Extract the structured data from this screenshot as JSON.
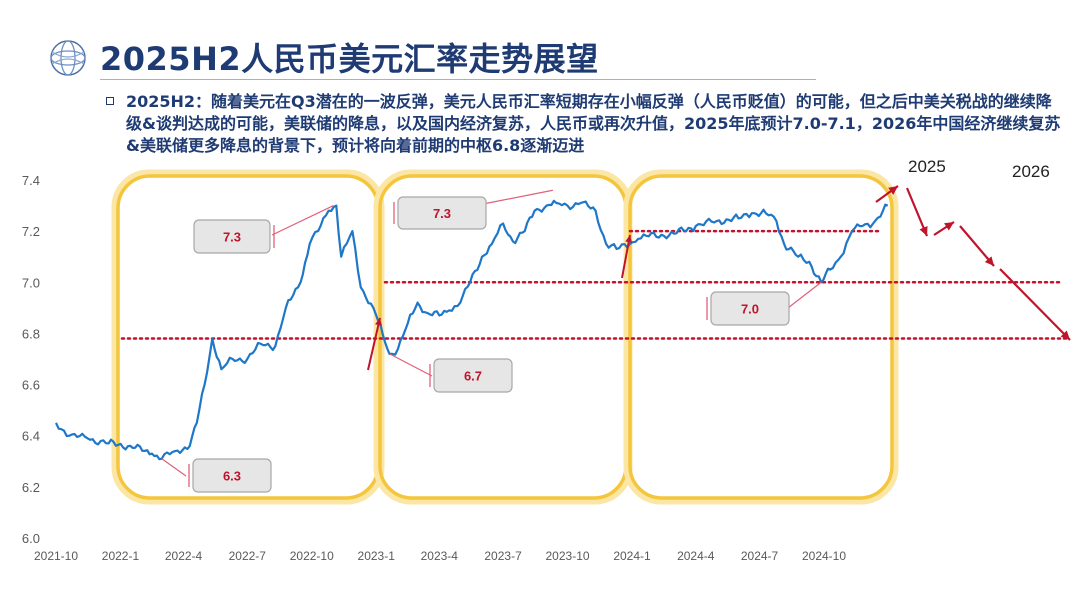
{
  "header": {
    "title": "2025H2人民币美元汇率走势展望",
    "summary": "2025H2：随着美元在Q3潜在的一波反弹，美元人民币汇率短期存在小幅反弹（人民币贬值）的可能，但之后中美关税战的继续降级&谈判达成的可能，美联储的降息，以及国内经济复苏，人民币或再次升值，2025年底预计7.0-7.1，2026年中国经济继续复苏&美联储更多降息的背景下，预计将向着前期的中枢6.8逐渐迈进"
  },
  "colors": {
    "title": "#1f3b73",
    "series": "#1f77c8",
    "highlight_box": "#f4c63d",
    "reference_line": "#c0142c",
    "callout_text": "#c0142c"
  },
  "chart_data": {
    "type": "line",
    "title": "",
    "xlabel": "",
    "ylabel": "",
    "ylim": [
      6.0,
      7.4
    ],
    "yticks": [
      "6.0",
      "6.2",
      "6.4",
      "6.6",
      "6.8",
      "7.0",
      "7.2",
      "7.4"
    ],
    "xticks": [
      "2021-10",
      "2022-1",
      "2022-4",
      "2022-7",
      "2022-10",
      "2023-1",
      "2023-4",
      "2023-7",
      "2023-10",
      "2024-1",
      "2024-4",
      "2024-7",
      "2024-10"
    ],
    "grid": false,
    "series": [
      {
        "name": "",
        "points": [
          [
            "2021-10-01",
            6.45
          ],
          [
            "2021-10-20",
            6.4
          ],
          [
            "2021-11-15",
            6.39
          ],
          [
            "2021-12-15",
            6.37
          ],
          [
            "2022-01-15",
            6.36
          ],
          [
            "2022-02-15",
            6.33
          ],
          [
            "2022-03-01",
            6.31
          ],
          [
            "2022-03-20",
            6.34
          ],
          [
            "2022-04-10",
            6.36
          ],
          [
            "2022-04-20",
            6.45
          ],
          [
            "2022-05-01",
            6.6
          ],
          [
            "2022-05-12",
            6.78
          ],
          [
            "2022-05-25",
            6.66
          ],
          [
            "2022-06-10",
            6.7
          ],
          [
            "2022-07-01",
            6.7
          ],
          [
            "2022-07-20",
            6.76
          ],
          [
            "2022-08-10",
            6.75
          ],
          [
            "2022-08-25",
            6.9
          ],
          [
            "2022-09-15",
            7.0
          ],
          [
            "2022-09-28",
            7.15
          ],
          [
            "2022-10-10",
            7.2
          ],
          [
            "2022-10-25",
            7.28
          ],
          [
            "2022-11-05",
            7.3
          ],
          [
            "2022-11-12",
            7.1
          ],
          [
            "2022-11-28",
            7.2
          ],
          [
            "2022-12-10",
            6.98
          ],
          [
            "2022-12-28",
            6.9
          ],
          [
            "2023-01-10",
            6.8
          ],
          [
            "2023-01-20",
            6.72
          ],
          [
            "2023-02-01",
            6.74
          ],
          [
            "2023-02-15",
            6.84
          ],
          [
            "2023-03-01",
            6.92
          ],
          [
            "2023-03-15",
            6.88
          ],
          [
            "2023-04-01",
            6.87
          ],
          [
            "2023-04-15",
            6.89
          ],
          [
            "2023-05-01",
            6.92
          ],
          [
            "2023-05-15",
            7.0
          ],
          [
            "2023-06-01",
            7.1
          ],
          [
            "2023-06-15",
            7.15
          ],
          [
            "2023-07-01",
            7.23
          ],
          [
            "2023-07-15",
            7.16
          ],
          [
            "2023-08-01",
            7.2
          ],
          [
            "2023-08-15",
            7.28
          ],
          [
            "2023-09-01",
            7.3
          ],
          [
            "2023-09-15",
            7.31
          ],
          [
            "2023-10-01",
            7.3
          ],
          [
            "2023-10-20",
            7.31
          ],
          [
            "2023-11-10",
            7.28
          ],
          [
            "2023-11-25",
            7.15
          ],
          [
            "2023-12-10",
            7.13
          ],
          [
            "2023-12-29",
            7.15
          ],
          [
            "2024-01-10",
            7.17
          ],
          [
            "2024-01-25",
            7.18
          ],
          [
            "2024-03-01",
            7.19
          ],
          [
            "2024-04-01",
            7.22
          ],
          [
            "2024-05-01",
            7.24
          ],
          [
            "2024-06-01",
            7.25
          ],
          [
            "2024-06-20",
            7.27
          ],
          [
            "2024-07-10",
            7.27
          ],
          [
            "2024-07-25",
            7.24
          ],
          [
            "2024-08-05",
            7.15
          ],
          [
            "2024-08-25",
            7.1
          ],
          [
            "2024-09-10",
            7.08
          ],
          [
            "2024-09-27",
            7.0
          ],
          [
            "2024-10-10",
            7.05
          ],
          [
            "2024-10-25",
            7.1
          ],
          [
            "2024-11-10",
            7.2
          ],
          [
            "2024-11-25",
            7.22
          ],
          [
            "2024-12-10",
            7.23
          ],
          [
            "2024-12-31",
            7.3
          ]
        ]
      }
    ],
    "reference_lines": [
      {
        "value": 7.2,
        "style": "dotted"
      },
      {
        "value": 7.0,
        "style": "dotted"
      },
      {
        "value": 6.78,
        "style": "dotted"
      }
    ],
    "callouts": [
      {
        "label": "7.3",
        "x": "2022-11-01",
        "y": 7.3
      },
      {
        "label": "6.3",
        "x": "2022-03-01",
        "y": 6.31
      },
      {
        "label": "7.3",
        "x": "2023-09-10",
        "y": 7.36
      },
      {
        "label": "6.7",
        "x": "2023-01-20",
        "y": 6.72
      },
      {
        "label": "7.0",
        "x": "2024-09-27",
        "y": 7.0
      }
    ],
    "forecast_labels": [
      "2025",
      "2026"
    ]
  }
}
